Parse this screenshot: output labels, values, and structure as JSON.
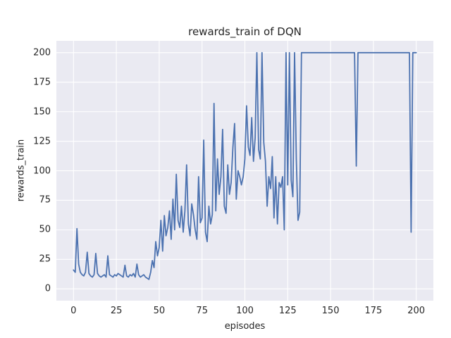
{
  "chart_data": {
    "type": "line",
    "title": "rewards_train of DQN",
    "xlabel": "episodes",
    "ylabel": "rewards_train",
    "x_ticks": [
      0,
      25,
      50,
      75,
      100,
      125,
      150,
      175,
      200
    ],
    "y_ticks": [
      0,
      25,
      50,
      75,
      100,
      125,
      150,
      175,
      200
    ],
    "xlim": [
      -10,
      210
    ],
    "ylim": [
      -10,
      210
    ],
    "grid": true,
    "legend": false,
    "background": "#eaeaf2",
    "grid_color": "#ffffff",
    "text_color": "#262626",
    "line_color": "#4c72b0",
    "x_start": 0,
    "x_step": 1,
    "series": [
      {
        "name": "rewards_train",
        "values": [
          16,
          14,
          51,
          21,
          14,
          12,
          11,
          14,
          31,
          13,
          11,
          10,
          12,
          30,
          13,
          11,
          10,
          11,
          12,
          10,
          28,
          12,
          11,
          10,
          12,
          11,
          13,
          12,
          11,
          10,
          20,
          11,
          10,
          12,
          11,
          13,
          10,
          21,
          12,
          10,
          11,
          12,
          10,
          9,
          8,
          14,
          24,
          18,
          40,
          28,
          35,
          58,
          32,
          62,
          45,
          52,
          66,
          42,
          76,
          50,
          97,
          58,
          52,
          70,
          48,
          66,
          105,
          55,
          45,
          72,
          63,
          50,
          42,
          95,
          56,
          60,
          126,
          48,
          40,
          70,
          55,
          63,
          157,
          66,
          110,
          80,
          95,
          135,
          70,
          64,
          105,
          80,
          90,
          120,
          140,
          76,
          100,
          95,
          88,
          95,
          110,
          155,
          120,
          113,
          145,
          108,
          128,
          200,
          118,
          110,
          200,
          124,
          108,
          70,
          95,
          85,
          112,
          60,
          95,
          55,
          90,
          86,
          95,
          50,
          200,
          88,
          200,
          92,
          78,
          200,
          110,
          58,
          65,
          200,
          200,
          200,
          200,
          200,
          200,
          200,
          200,
          200,
          200,
          200,
          200,
          200,
          200,
          200,
          200,
          200,
          200,
          200,
          200,
          200,
          200,
          200,
          200,
          200,
          200,
          200,
          200,
          200,
          200,
          200,
          200,
          104,
          200,
          200,
          200,
          200,
          200,
          200,
          200,
          200,
          200,
          200,
          200,
          200,
          200,
          200,
          200,
          200,
          200,
          200,
          200,
          200,
          200,
          200,
          200,
          200,
          200,
          200,
          200,
          200,
          200,
          200,
          200,
          48,
          200,
          200,
          200
        ]
      }
    ]
  }
}
